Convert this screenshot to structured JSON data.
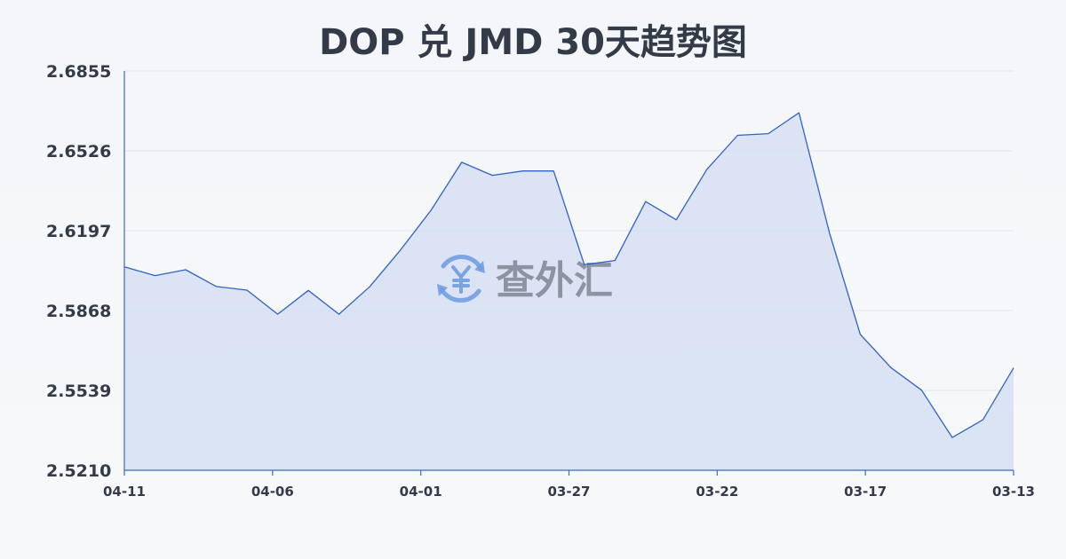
{
  "colors": {
    "line": "#2f63c2",
    "area": "#d3def4",
    "text": "#333b49",
    "grid": "#e3e6ec",
    "watermark_icon": "#6f9be0"
  },
  "watermark": {
    "icon": "yen-exchange-icon",
    "text": "查外汇"
  },
  "chart_data": {
    "type": "area",
    "title": "DOP 兑 JMD 30天趋势图",
    "xlabel": "",
    "ylabel": "",
    "ylim": [
      2.521,
      2.6855
    ],
    "yticks": [
      "2.6855",
      "2.6526",
      "2.6197",
      "2.5868",
      "2.5539",
      "2.5210"
    ],
    "x_ticks": [
      "04-11",
      "04-06",
      "04-01",
      "03-27",
      "03-22",
      "03-17",
      "03-13"
    ],
    "x_axis_order": "newest-left",
    "grid": true,
    "legend": "none",
    "series": [
      {
        "x": [
          "04-11",
          "04-10",
          "04-09",
          "04-08",
          "04-07",
          "04-06",
          "04-05",
          "04-04",
          "04-03",
          "04-02",
          "04-01",
          "03-31",
          "03-30",
          "03-29",
          "03-28",
          "03-27",
          "03-26",
          "03-25",
          "03-24",
          "03-23",
          "03-22",
          "03-21",
          "03-20",
          "03-19",
          "03-18",
          "03-17",
          "03-16",
          "03-15",
          "03-14",
          "03-13"
        ],
        "values": [
          2.6048,
          2.6012,
          2.6036,
          2.5967,
          2.5952,
          2.5853,
          2.5951,
          2.5853,
          2.5966,
          2.6117,
          2.6281,
          2.6479,
          2.6425,
          2.6443,
          2.6443,
          2.6057,
          2.6074,
          2.6317,
          2.6242,
          2.645,
          2.659,
          2.6597,
          2.6683,
          2.6186,
          2.577,
          2.5633,
          2.554,
          2.5345,
          2.5418,
          2.5632
        ]
      }
    ]
  }
}
